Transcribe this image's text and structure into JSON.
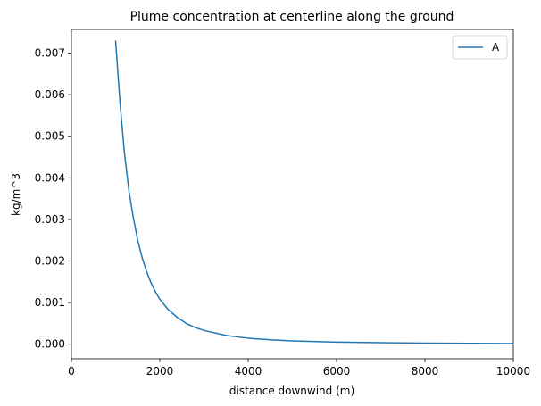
{
  "chart_data": {
    "type": "line",
    "title": "Plume concentration at centerline along the ground",
    "xlabel": "distance downwind (m)",
    "ylabel": "kg/m^3",
    "xlim": [
      0,
      10000
    ],
    "ylim": [
      -0.00035,
      0.00757
    ],
    "x_ticks": [
      0,
      2000,
      4000,
      6000,
      8000,
      10000
    ],
    "x_tick_labels": [
      "0",
      "2000",
      "4000",
      "6000",
      "8000",
      "10000"
    ],
    "y_ticks": [
      0,
      0.001,
      0.002,
      0.003,
      0.004,
      0.005,
      0.006,
      0.007
    ],
    "y_tick_labels": [
      "0.000",
      "0.001",
      "0.002",
      "0.003",
      "0.004",
      "0.005",
      "0.006",
      "0.007"
    ],
    "grid": false,
    "legend_position": "upper right",
    "series": [
      {
        "name": "A",
        "color": "#1f77b4",
        "x": [
          1000,
          1100,
          1200,
          1300,
          1400,
          1500,
          1600,
          1700,
          1800,
          1900,
          2000,
          2200,
          2400,
          2600,
          2800,
          3000,
          3500,
          4000,
          4500,
          5000,
          6000,
          7000,
          8000,
          9000,
          10000
        ],
        "y": [
          0.0073,
          0.0058,
          0.0046,
          0.0037,
          0.00305,
          0.0025,
          0.00208,
          0.00175,
          0.00148,
          0.00126,
          0.00108,
          0.00082,
          0.00064,
          0.0005,
          0.0004,
          0.00033,
          0.00021,
          0.000145,
          0.000106,
          8e-05,
          5e-05,
          3.5e-05,
          2.6e-05,
          2e-05,
          1.6e-05
        ]
      }
    ]
  }
}
